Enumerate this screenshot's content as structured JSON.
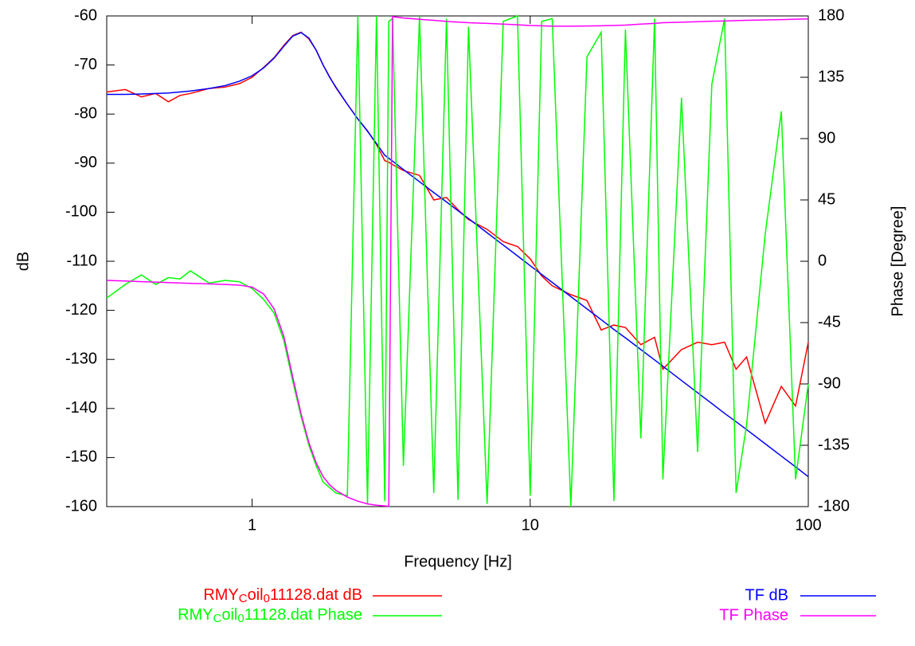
{
  "chart_data": {
    "type": "line",
    "xlabel": "Frequency [Hz]",
    "ylabel": "dB",
    "y2label": "Phase [Degree]",
    "xscale": "log",
    "xlim": [
      0.3,
      100
    ],
    "xticks": [
      1,
      10,
      100
    ],
    "ylim": [
      -160,
      -60
    ],
    "yticks": [
      -160,
      -150,
      -140,
      -130,
      -120,
      -110,
      -100,
      -90,
      -80,
      -70,
      -60
    ],
    "y2lim": [
      -180,
      180
    ],
    "y2ticks": [
      -180,
      -135,
      -90,
      -45,
      0,
      45,
      90,
      135,
      180
    ],
    "x": [
      0.3,
      0.35,
      0.4,
      0.45,
      0.5,
      0.55,
      0.6,
      0.7,
      0.8,
      0.9,
      1.0,
      1.1,
      1.2,
      1.3,
      1.4,
      1.5,
      1.6,
      1.7,
      1.8,
      1.9,
      2.0,
      2.2,
      2.4,
      2.6,
      2.8,
      3.0,
      3.1,
      3.2,
      3.5,
      4,
      4.5,
      5,
      5.5,
      6,
      7,
      8,
      9,
      10,
      11,
      12,
      14,
      16,
      18,
      20,
      22,
      25,
      28,
      30,
      35,
      40,
      45,
      50,
      55,
      60,
      70,
      80,
      90,
      100
    ],
    "series": [
      {
        "name": "RMYCoil011128.dat dB",
        "color": "#ff0000",
        "axis": "y",
        "values": [
          -75.5,
          -75,
          -76.5,
          -75.8,
          -77.5,
          -76.2,
          -75.8,
          -74.8,
          -74.5,
          -73.8,
          -72.5,
          -70.5,
          -68.5,
          -66,
          -64,
          -63.3,
          -64.7,
          -67,
          -70,
          -72.4,
          -74.6,
          -78,
          -81,
          -83.4,
          -86.2,
          -89.5,
          -89.8,
          -90.3,
          -91.5,
          -92.5,
          -97.5,
          -97,
          -99.5,
          -101.5,
          -103.5,
          -106,
          -107,
          -109.5,
          -113,
          -115,
          -116.8,
          -118,
          -124,
          -123,
          -123.5,
          -127,
          -125.5,
          -132,
          -128,
          -126.5,
          -127,
          -126.5,
          -132,
          -129.5,
          -143,
          -135.5,
          -139.5,
          -126.5
        ]
      },
      {
        "name": "RMYCoil011128.dat Phase",
        "color": "#00ff00",
        "axis": "y2",
        "values": [
          -27,
          -17,
          -10,
          -17,
          -12,
          -13,
          -7,
          -16,
          -14,
          -15,
          -20,
          -28,
          -38,
          -58,
          -88,
          -114,
          -135,
          -150,
          -162,
          -166,
          -170,
          -172,
          180,
          -178,
          180,
          -176,
          176,
          178,
          -150,
          180,
          -170,
          178,
          -175,
          172,
          -178,
          176,
          180,
          -172,
          176,
          178,
          -180,
          150,
          168,
          -176,
          170,
          -130,
          178,
          -160,
          120,
          -140,
          130,
          178,
          -170,
          -120,
          20,
          110,
          -160,
          -90
        ]
      },
      {
        "name": "TF dB",
        "color": "#0000ff",
        "axis": "y",
        "values": [
          -76,
          -76,
          -75.9,
          -75.8,
          -75.7,
          -75.5,
          -75.3,
          -74.8,
          -74.2,
          -73.3,
          -72.2,
          -70.6,
          -68.6,
          -66.2,
          -64.1,
          -63.4,
          -64.5,
          -67,
          -70,
          -72.5,
          -74.5,
          -78,
          -81,
          -83.5,
          -86,
          -88.4,
          -89,
          -89.6,
          -91.3,
          -93.8,
          -96,
          -97.9,
          -99.7,
          -101.3,
          -104.2,
          -106.7,
          -108.9,
          -110.9,
          -112.7,
          -114.3,
          -117.2,
          -119.7,
          -121.9,
          -123.9,
          -125.6,
          -128,
          -130.1,
          -131.4,
          -134.3,
          -136.8,
          -139,
          -141,
          -142.7,
          -144.3,
          -147.2,
          -149.7,
          -151.9,
          -153.9
        ]
      },
      {
        "name": "TF Phase",
        "color": "#ff00ff",
        "axis": "y2",
        "values": [
          -14,
          -14.5,
          -15,
          -15.3,
          -15.6,
          -15.9,
          -16.2,
          -16.6,
          -17,
          -17.5,
          -19,
          -24,
          -35,
          -55,
          -85,
          -112,
          -133,
          -148,
          -158,
          -164,
          -168,
          -173,
          -176,
          -178,
          -179,
          -179.5,
          -179.8,
          179.5,
          178.5,
          177.5,
          176.8,
          176,
          175.5,
          175,
          174.5,
          174,
          173.5,
          173,
          172.8,
          172.5,
          172.5,
          172.6,
          172.8,
          173,
          173.3,
          174,
          174.5,
          175,
          175.4,
          175.8,
          176.1,
          176.3,
          176.6,
          176.8,
          177.1,
          177.3,
          177.6,
          177.8
        ]
      }
    ]
  }
}
